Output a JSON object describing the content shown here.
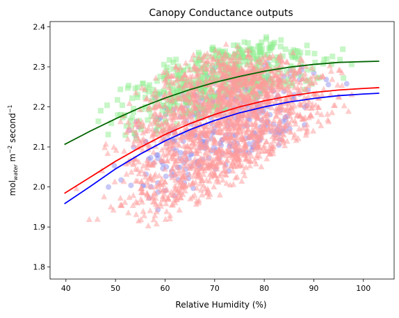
{
  "chart_data": {
    "type": "scatter",
    "title": "Canopy Conductance outputs",
    "xlabel": "Relative Humidity (%)",
    "ylabel": {
      "prefix": "mol",
      "subscript": "water",
      "unit_m": "m",
      "exp1": "−2",
      "unit_s": "second",
      "exp2": "−1"
    },
    "xlim": [
      36.8,
      106.2
    ],
    "ylim": [
      1.77,
      2.413
    ],
    "xticks": [
      40,
      50,
      60,
      70,
      80,
      90,
      100
    ],
    "yticks": [
      1.8,
      1.9,
      2.0,
      2.1,
      2.2,
      2.3,
      2.4
    ],
    "xtick_labels": [
      "40",
      "50",
      "60",
      "70",
      "80",
      "90",
      "100"
    ],
    "ytick_labels": [
      "1.8",
      "1.9",
      "2.0",
      "2.1",
      "2.2",
      "2.3",
      "2.4"
    ],
    "grid": false,
    "legend": "none",
    "x_range": [
      39.7,
      103.2
    ],
    "series": [
      {
        "marker": "circle",
        "point_color": "#8f8fef",
        "line_color": "#0000ff",
        "band_center": [
          [
            40,
            1.94
          ],
          [
            50,
            2.03
          ],
          [
            60,
            2.1
          ],
          [
            70,
            2.16
          ],
          [
            80,
            2.2
          ],
          [
            90,
            2.22
          ],
          [
            103,
            2.23
          ]
        ],
        "band_halfwidth": [
          [
            40,
            0.04
          ],
          [
            50,
            0.13
          ],
          [
            60,
            0.16
          ],
          [
            70,
            0.15
          ],
          [
            80,
            0.12
          ],
          [
            90,
            0.1
          ],
          [
            103,
            0.04
          ]
        ],
        "n": 320,
        "seed": 11,
        "fit": [
          [
            39.7,
            1.958
          ],
          [
            45,
            2.002
          ],
          [
            50,
            2.045
          ],
          [
            55,
            2.082
          ],
          [
            60,
            2.115
          ],
          [
            65,
            2.143
          ],
          [
            70,
            2.166
          ],
          [
            75,
            2.185
          ],
          [
            80,
            2.2
          ],
          [
            85,
            2.212
          ],
          [
            90,
            2.221
          ],
          [
            95,
            2.228
          ],
          [
            100,
            2.232
          ],
          [
            103.2,
            2.234
          ]
        ]
      },
      {
        "marker": "square",
        "point_color": "#90ee90",
        "line_color": "#006400",
        "band_center": [
          [
            40,
            2.1
          ],
          [
            50,
            2.18
          ],
          [
            60,
            2.23
          ],
          [
            70,
            2.27
          ],
          [
            80,
            2.3
          ],
          [
            90,
            2.3
          ],
          [
            103,
            2.31
          ]
        ],
        "band_halfwidth": [
          [
            40,
            0.02
          ],
          [
            50,
            0.08
          ],
          [
            60,
            0.1
          ],
          [
            70,
            0.09
          ],
          [
            80,
            0.08
          ],
          [
            90,
            0.06
          ],
          [
            103,
            0.04
          ]
        ],
        "n": 520,
        "seed": 23,
        "fit": [
          [
            39.7,
            2.106
          ],
          [
            45,
            2.14
          ],
          [
            50,
            2.17
          ],
          [
            55,
            2.198
          ],
          [
            60,
            2.222
          ],
          [
            65,
            2.243
          ],
          [
            70,
            2.261
          ],
          [
            75,
            2.276
          ],
          [
            80,
            2.289
          ],
          [
            85,
            2.299
          ],
          [
            90,
            2.306
          ],
          [
            95,
            2.311
          ],
          [
            100,
            2.313
          ],
          [
            103.2,
            2.314
          ]
        ]
      },
      {
        "marker": "triangle",
        "point_color": "#ff9a9a",
        "line_color": "#ff0000",
        "band_center": [
          [
            40,
            1.96
          ],
          [
            50,
            2.03
          ],
          [
            60,
            2.11
          ],
          [
            70,
            2.16
          ],
          [
            80,
            2.2
          ],
          [
            90,
            2.23
          ],
          [
            103,
            2.24
          ]
        ],
        "band_halfwidth": [
          [
            40,
            0.08
          ],
          [
            50,
            0.17
          ],
          [
            60,
            0.2
          ],
          [
            70,
            0.2
          ],
          [
            80,
            0.15
          ],
          [
            90,
            0.1
          ],
          [
            103,
            0.04
          ]
        ],
        "n": 1800,
        "seed": 37,
        "fit": [
          [
            39.7,
            1.984
          ],
          [
            45,
            2.025
          ],
          [
            50,
            2.064
          ],
          [
            55,
            2.099
          ],
          [
            60,
            2.131
          ],
          [
            65,
            2.158
          ],
          [
            70,
            2.181
          ],
          [
            75,
            2.2
          ],
          [
            80,
            2.215
          ],
          [
            85,
            2.227
          ],
          [
            90,
            2.236
          ],
          [
            95,
            2.242
          ],
          [
            100,
            2.246
          ],
          [
            103.2,
            2.248
          ]
        ]
      }
    ]
  }
}
